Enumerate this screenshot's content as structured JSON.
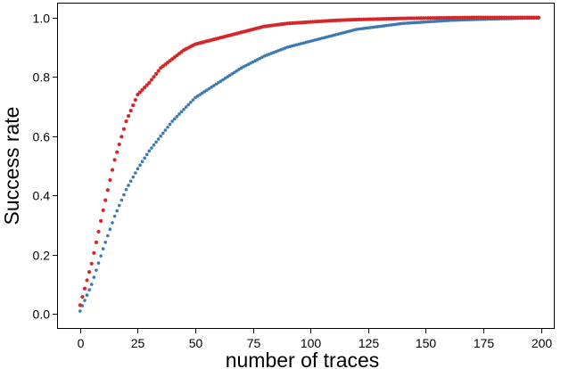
{
  "chart_data": {
    "type": "scatter",
    "title": "",
    "xlabel": "number of traces",
    "ylabel": "Success rate",
    "xlim": [
      -10,
      206
    ],
    "ylim": [
      -0.05,
      1.05
    ],
    "xticks": [
      0,
      25,
      50,
      75,
      100,
      125,
      150,
      175,
      200
    ],
    "xtick_labels": [
      "0",
      "25",
      "50",
      "75",
      "100",
      "125",
      "150",
      "175",
      "200"
    ],
    "yticks": [
      0.0,
      0.2,
      0.4,
      0.6,
      0.8,
      1.0
    ],
    "ytick_labels": [
      "0.0",
      "0.2",
      "0.4",
      "0.6",
      "0.8",
      "1.0"
    ],
    "grid": false,
    "legend": "none",
    "series": [
      {
        "color": "#d62728",
        "x": [
          0,
          5,
          10,
          15,
          20,
          25,
          30,
          35,
          40,
          45,
          50,
          60,
          70,
          80,
          90,
          100,
          110,
          120,
          130,
          140,
          150,
          160,
          170,
          180,
          190,
          199
        ],
        "y": [
          0.03,
          0.17,
          0.35,
          0.52,
          0.65,
          0.74,
          0.78,
          0.83,
          0.86,
          0.89,
          0.91,
          0.93,
          0.95,
          0.97,
          0.98,
          0.985,
          0.99,
          0.993,
          0.995,
          0.997,
          0.998,
          0.999,
          1.0,
          1.0,
          1.0,
          1.0
        ]
      },
      {
        "color": "#3a7ab0",
        "x": [
          0,
          5,
          10,
          15,
          20,
          25,
          30,
          35,
          40,
          45,
          50,
          60,
          70,
          80,
          90,
          100,
          110,
          120,
          130,
          140,
          150,
          160,
          170,
          180,
          190,
          199
        ],
        "y": [
          0.01,
          0.1,
          0.22,
          0.33,
          0.42,
          0.49,
          0.55,
          0.6,
          0.65,
          0.69,
          0.73,
          0.78,
          0.83,
          0.87,
          0.9,
          0.92,
          0.94,
          0.96,
          0.97,
          0.98,
          0.985,
          0.99,
          0.993,
          0.995,
          0.997,
          0.998
        ]
      }
    ]
  }
}
